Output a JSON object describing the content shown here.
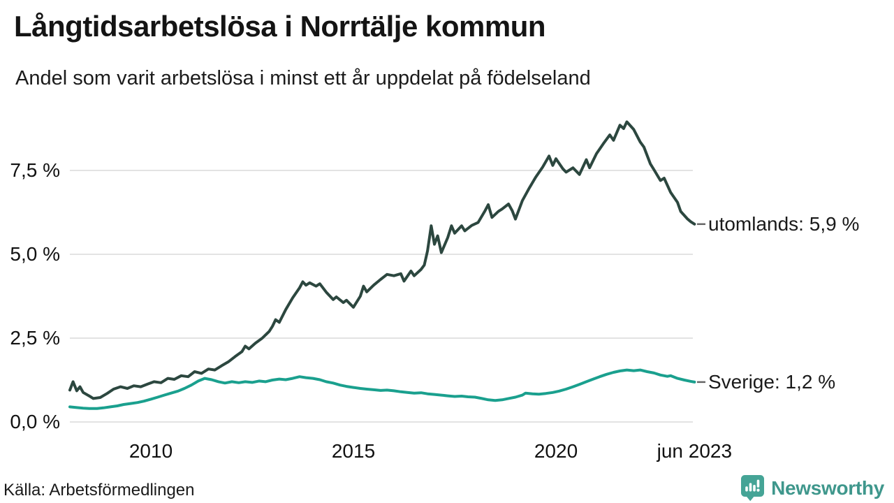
{
  "header": {
    "title": "Långtidsarbetslösa i Norrtälje kommun",
    "subtitle": "Andel som varit arbetslösa i minst ett år uppdelat på födelseland"
  },
  "footer": {
    "source": "Källa: Arbetsförmedlingen",
    "brand": "Newsworthy"
  },
  "colors": {
    "series_utomlands": "#2c473f",
    "series_sverige": "#1aa08e",
    "grid": "#e3e3e3",
    "leader_dash": "#666666",
    "brand_teal": "#3f978c",
    "brand_icon": "#45a496",
    "text": "#111111"
  },
  "chart_data": {
    "type": "line",
    "title": "Långtidsarbetslösa i Norrtälje kommun",
    "subtitle": "Andel som varit arbetslösa i minst ett år uppdelat på födelseland",
    "xlabel": "",
    "ylabel": "",
    "unit": "%",
    "grid": "horizontal",
    "legend_position": "end-of-line",
    "x_axis": {
      "range": [
        2008.0,
        2023.45
      ],
      "ticks": [
        {
          "x": 2010,
          "label": "2010"
        },
        {
          "x": 2015,
          "label": "2015"
        },
        {
          "x": 2020,
          "label": "2020"
        },
        {
          "x": 2023.42,
          "label": "jun 2023"
        }
      ]
    },
    "y_axis": {
      "range": [
        0,
        9.05
      ],
      "ticks": [
        {
          "v": 0,
          "label": "0,0 %"
        },
        {
          "v": 2.5,
          "label": "2,5 %"
        },
        {
          "v": 5,
          "label": "5,0 %"
        },
        {
          "v": 7.5,
          "label": "7,5 %"
        }
      ]
    },
    "series": [
      {
        "name": "utomlands",
        "end_label": "utomlands: 5,9 %",
        "final_value": "5,9 %",
        "color": "#2c473f",
        "points": [
          [
            2008.0,
            0.95
          ],
          [
            2008.08,
            1.2
          ],
          [
            2008.17,
            0.93
          ],
          [
            2008.25,
            1.05
          ],
          [
            2008.33,
            0.88
          ],
          [
            2008.5,
            0.76
          ],
          [
            2008.58,
            0.7
          ],
          [
            2008.75,
            0.73
          ],
          [
            2008.92,
            0.85
          ],
          [
            2009.08,
            0.98
          ],
          [
            2009.25,
            1.05
          ],
          [
            2009.42,
            1.0
          ],
          [
            2009.58,
            1.08
          ],
          [
            2009.75,
            1.05
          ],
          [
            2009.92,
            1.13
          ],
          [
            2010.08,
            1.2
          ],
          [
            2010.25,
            1.17
          ],
          [
            2010.42,
            1.3
          ],
          [
            2010.58,
            1.27
          ],
          [
            2010.75,
            1.38
          ],
          [
            2010.92,
            1.35
          ],
          [
            2011.08,
            1.5
          ],
          [
            2011.25,
            1.45
          ],
          [
            2011.42,
            1.58
          ],
          [
            2011.58,
            1.55
          ],
          [
            2011.75,
            1.68
          ],
          [
            2011.92,
            1.8
          ],
          [
            2012.08,
            1.95
          ],
          [
            2012.25,
            2.1
          ],
          [
            2012.33,
            2.26
          ],
          [
            2012.42,
            2.18
          ],
          [
            2012.58,
            2.35
          ],
          [
            2012.75,
            2.5
          ],
          [
            2012.92,
            2.7
          ],
          [
            2013.0,
            2.85
          ],
          [
            2013.08,
            3.05
          ],
          [
            2013.17,
            2.97
          ],
          [
            2013.33,
            3.35
          ],
          [
            2013.5,
            3.7
          ],
          [
            2013.67,
            4.0
          ],
          [
            2013.75,
            4.18
          ],
          [
            2013.83,
            4.08
          ],
          [
            2013.92,
            4.15
          ],
          [
            2014.08,
            4.05
          ],
          [
            2014.17,
            4.12
          ],
          [
            2014.33,
            3.87
          ],
          [
            2014.5,
            3.65
          ],
          [
            2014.58,
            3.73
          ],
          [
            2014.75,
            3.56
          ],
          [
            2014.83,
            3.63
          ],
          [
            2015.0,
            3.42
          ],
          [
            2015.17,
            3.75
          ],
          [
            2015.25,
            4.05
          ],
          [
            2015.33,
            3.88
          ],
          [
            2015.5,
            4.08
          ],
          [
            2015.67,
            4.25
          ],
          [
            2015.83,
            4.4
          ],
          [
            2016.0,
            4.36
          ],
          [
            2016.17,
            4.42
          ],
          [
            2016.25,
            4.2
          ],
          [
            2016.42,
            4.5
          ],
          [
            2016.5,
            4.36
          ],
          [
            2016.67,
            4.55
          ],
          [
            2016.75,
            4.68
          ],
          [
            2016.83,
            5.1
          ],
          [
            2016.92,
            5.85
          ],
          [
            2017.0,
            5.3
          ],
          [
            2017.08,
            5.55
          ],
          [
            2017.17,
            5.05
          ],
          [
            2017.33,
            5.5
          ],
          [
            2017.42,
            5.85
          ],
          [
            2017.5,
            5.63
          ],
          [
            2017.67,
            5.85
          ],
          [
            2017.75,
            5.7
          ],
          [
            2017.92,
            5.86
          ],
          [
            2018.08,
            5.95
          ],
          [
            2018.25,
            6.3
          ],
          [
            2018.33,
            6.48
          ],
          [
            2018.42,
            6.1
          ],
          [
            2018.58,
            6.28
          ],
          [
            2018.67,
            6.35
          ],
          [
            2018.83,
            6.5
          ],
          [
            2018.92,
            6.3
          ],
          [
            2019.0,
            6.05
          ],
          [
            2019.17,
            6.6
          ],
          [
            2019.33,
            6.95
          ],
          [
            2019.5,
            7.3
          ],
          [
            2019.67,
            7.6
          ],
          [
            2019.83,
            7.93
          ],
          [
            2019.92,
            7.65
          ],
          [
            2020.0,
            7.85
          ],
          [
            2020.17,
            7.55
          ],
          [
            2020.25,
            7.45
          ],
          [
            2020.42,
            7.58
          ],
          [
            2020.58,
            7.38
          ],
          [
            2020.75,
            7.82
          ],
          [
            2020.83,
            7.58
          ],
          [
            2021.0,
            8.0
          ],
          [
            2021.17,
            8.3
          ],
          [
            2021.33,
            8.56
          ],
          [
            2021.42,
            8.4
          ],
          [
            2021.58,
            8.85
          ],
          [
            2021.67,
            8.75
          ],
          [
            2021.75,
            8.95
          ],
          [
            2021.92,
            8.72
          ],
          [
            2022.08,
            8.35
          ],
          [
            2022.17,
            8.2
          ],
          [
            2022.33,
            7.7
          ],
          [
            2022.42,
            7.52
          ],
          [
            2022.58,
            7.2
          ],
          [
            2022.67,
            7.27
          ],
          [
            2022.83,
            6.85
          ],
          [
            2023.0,
            6.55
          ],
          [
            2023.08,
            6.28
          ],
          [
            2023.25,
            6.05
          ],
          [
            2023.33,
            5.97
          ],
          [
            2023.42,
            5.9
          ]
        ]
      },
      {
        "name": "Sverige",
        "end_label": "Sverige: 1,2 %",
        "final_value": "1,2 %",
        "color": "#1aa08e",
        "points": [
          [
            2008.0,
            0.45
          ],
          [
            2008.17,
            0.43
          ],
          [
            2008.33,
            0.41
          ],
          [
            2008.5,
            0.4
          ],
          [
            2008.67,
            0.4
          ],
          [
            2008.83,
            0.42
          ],
          [
            2009.0,
            0.45
          ],
          [
            2009.17,
            0.48
          ],
          [
            2009.33,
            0.52
          ],
          [
            2009.5,
            0.55
          ],
          [
            2009.67,
            0.58
          ],
          [
            2009.83,
            0.62
          ],
          [
            2010.0,
            0.68
          ],
          [
            2010.17,
            0.74
          ],
          [
            2010.33,
            0.8
          ],
          [
            2010.5,
            0.86
          ],
          [
            2010.67,
            0.92
          ],
          [
            2010.83,
            1.0
          ],
          [
            2011.0,
            1.1
          ],
          [
            2011.17,
            1.22
          ],
          [
            2011.33,
            1.3
          ],
          [
            2011.5,
            1.26
          ],
          [
            2011.67,
            1.2
          ],
          [
            2011.83,
            1.16
          ],
          [
            2012.0,
            1.2
          ],
          [
            2012.17,
            1.17
          ],
          [
            2012.33,
            1.2
          ],
          [
            2012.5,
            1.18
          ],
          [
            2012.67,
            1.22
          ],
          [
            2012.83,
            1.2
          ],
          [
            2013.0,
            1.25
          ],
          [
            2013.17,
            1.28
          ],
          [
            2013.33,
            1.26
          ],
          [
            2013.5,
            1.3
          ],
          [
            2013.67,
            1.35
          ],
          [
            2013.83,
            1.32
          ],
          [
            2014.0,
            1.3
          ],
          [
            2014.17,
            1.26
          ],
          [
            2014.33,
            1.2
          ],
          [
            2014.5,
            1.16
          ],
          [
            2014.67,
            1.1
          ],
          [
            2014.83,
            1.06
          ],
          [
            2015.0,
            1.03
          ],
          [
            2015.17,
            1.0
          ],
          [
            2015.33,
            0.98
          ],
          [
            2015.5,
            0.96
          ],
          [
            2015.67,
            0.94
          ],
          [
            2015.83,
            0.95
          ],
          [
            2016.0,
            0.93
          ],
          [
            2016.17,
            0.9
          ],
          [
            2016.33,
            0.88
          ],
          [
            2016.5,
            0.86
          ],
          [
            2016.67,
            0.87
          ],
          [
            2016.83,
            0.84
          ],
          [
            2017.0,
            0.82
          ],
          [
            2017.17,
            0.8
          ],
          [
            2017.33,
            0.78
          ],
          [
            2017.5,
            0.76
          ],
          [
            2017.67,
            0.77
          ],
          [
            2017.83,
            0.75
          ],
          [
            2018.0,
            0.74
          ],
          [
            2018.17,
            0.7
          ],
          [
            2018.33,
            0.66
          ],
          [
            2018.5,
            0.64
          ],
          [
            2018.67,
            0.66
          ],
          [
            2018.83,
            0.7
          ],
          [
            2019.0,
            0.74
          ],
          [
            2019.17,
            0.8
          ],
          [
            2019.25,
            0.86
          ],
          [
            2019.42,
            0.84
          ],
          [
            2019.58,
            0.83
          ],
          [
            2019.75,
            0.85
          ],
          [
            2019.92,
            0.88
          ],
          [
            2020.08,
            0.92
          ],
          [
            2020.25,
            0.98
          ],
          [
            2020.42,
            1.05
          ],
          [
            2020.58,
            1.12
          ],
          [
            2020.75,
            1.2
          ],
          [
            2020.92,
            1.28
          ],
          [
            2021.08,
            1.35
          ],
          [
            2021.25,
            1.42
          ],
          [
            2021.42,
            1.48
          ],
          [
            2021.58,
            1.52
          ],
          [
            2021.75,
            1.55
          ],
          [
            2021.92,
            1.53
          ],
          [
            2022.08,
            1.55
          ],
          [
            2022.25,
            1.5
          ],
          [
            2022.42,
            1.46
          ],
          [
            2022.58,
            1.4
          ],
          [
            2022.75,
            1.36
          ],
          [
            2022.83,
            1.38
          ],
          [
            2023.0,
            1.3
          ],
          [
            2023.17,
            1.25
          ],
          [
            2023.33,
            1.21
          ],
          [
            2023.42,
            1.19
          ]
        ]
      }
    ]
  }
}
